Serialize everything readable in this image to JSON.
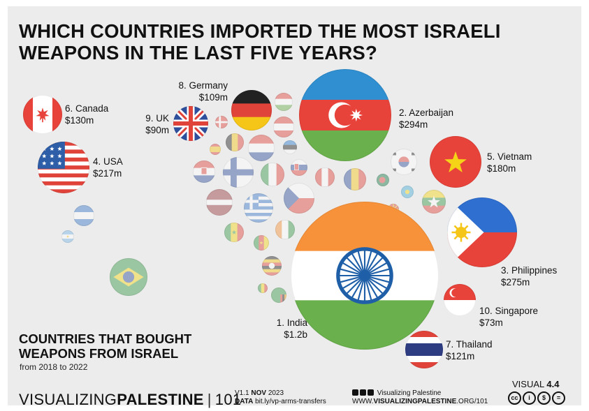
{
  "title_lines": [
    "WHICH COUNTRIES IMPORTED THE MOST ISRAELI",
    "WEAPONS IN THE LAST FIVE YEARS?"
  ],
  "subtitle_lines": [
    "COUNTRIES THAT BOUGHT",
    "WEAPONS FROM ISRAEL"
  ],
  "date_range": "from 2018 to 2022",
  "chart_data": {
    "type": "bubble",
    "unit": "USD",
    "series": [
      {
        "rank": 1,
        "country": "India",
        "label": "1. India",
        "value_label": "$1.2b",
        "value": 1200000000,
        "flag": "india"
      },
      {
        "rank": 2,
        "country": "Azerbaijan",
        "label": "2. Azerbaijan",
        "value_label": "$294m",
        "value": 294000000,
        "flag": "azerbaijan"
      },
      {
        "rank": 3,
        "country": "Philippines",
        "label": "3. Philippines",
        "value_label": "$275m",
        "value": 275000000,
        "flag": "philippines"
      },
      {
        "rank": 4,
        "country": "USA",
        "label": "4. USA",
        "value_label": "$217m",
        "value": 217000000,
        "flag": "usa"
      },
      {
        "rank": 5,
        "country": "Vietnam",
        "label": "5. Vietnam",
        "value_label": "$180m",
        "value": 180000000,
        "flag": "vietnam"
      },
      {
        "rank": 6,
        "country": "Canada",
        "label": "6. Canada",
        "value_label": "$130m",
        "value": 130000000,
        "flag": "canada"
      },
      {
        "rank": 7,
        "country": "Thailand",
        "label": "7. Thailand",
        "value_label": "$121m",
        "value": 121000000,
        "flag": "thailand"
      },
      {
        "rank": 8,
        "country": "Germany",
        "label": "8. Germany",
        "value_label": "$109m",
        "value": 109000000,
        "flag": "germany"
      },
      {
        "rank": 9,
        "country": "UK",
        "label": "9. UK",
        "value_label": "$90m",
        "value": 90000000,
        "flag": "uk"
      },
      {
        "rank": 10,
        "country": "Singapore",
        "label": "10. Singapore",
        "value_label": "$73m",
        "value": 73000000,
        "flag": "singapore"
      }
    ],
    "unlabeled_flags": [
      "hungary",
      "denmark",
      "netherlands",
      "estonia",
      "spain",
      "belgium",
      "austria",
      "slovakia",
      "croatia",
      "finland",
      "italy",
      "peru",
      "romania",
      "south-korea",
      "latvia",
      "greece",
      "czechia",
      "brazil",
      "honduras",
      "argentina",
      "senegal",
      "cameroon",
      "uganda",
      "zambia",
      "myanmar",
      "cote-divoire",
      "bangladesh",
      "kazakhstan",
      "mali",
      "north-macedonia"
    ]
  },
  "footer": {
    "brand_light": "VISUALIZING",
    "brand_bold": "PALESTINE",
    "brand_num": "101",
    "version_prefix": "V1.1",
    "version_month": "NOV",
    "version_year": "2023",
    "data_label": "DATA",
    "data_link": "bit.ly/vp-arms-transfers",
    "social_name": "Visualizing Palestine",
    "url_prefix": "WWW.",
    "url_bold": "VISUALIZINGPALESTINE",
    "url_suffix": ".ORG/101",
    "visual_label": "VISUAL",
    "visual_num": "4.4",
    "license_icons": [
      "cc",
      "by",
      "nc",
      "nd"
    ]
  },
  "colors": {
    "background": "#ececec",
    "text": "#111111"
  }
}
